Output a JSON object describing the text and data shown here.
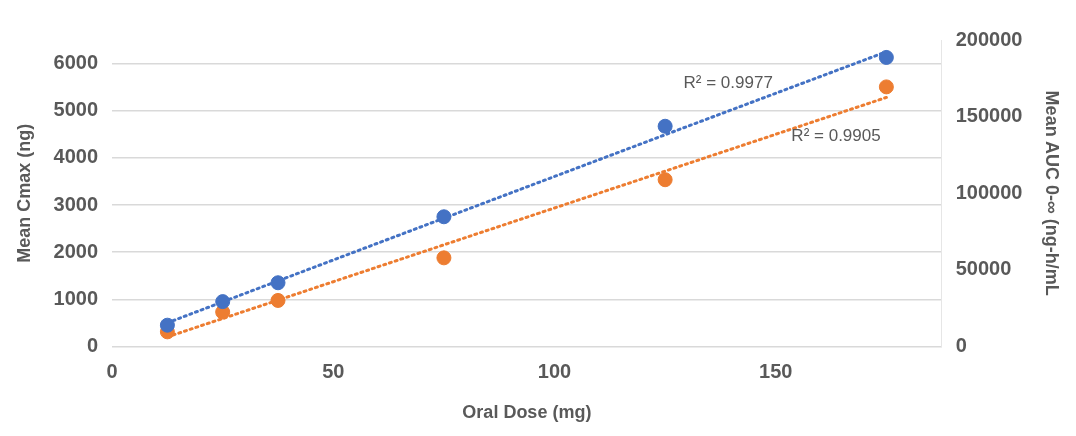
{
  "chart_data": {
    "type": "scatter",
    "xlabel": "Oral Dose (mg)",
    "ylabel": "Mean Cmax (ng)",
    "y2label": "Mean AUC 0-∞ (ng-h/mL",
    "x": [
      12.5,
      25,
      37.5,
      75,
      125,
      175
    ],
    "xlim": [
      0,
      187.5
    ],
    "xticks": [
      0,
      50,
      100,
      150
    ],
    "ylim": [
      0,
      6500
    ],
    "yticks": [
      0,
      1000,
      2000,
      3000,
      4000,
      5000,
      6000
    ],
    "y2lim": [
      0,
      200000
    ],
    "y2ticks": [
      0,
      50000,
      100000,
      150000,
      200000
    ],
    "grid": "y",
    "legend": false,
    "marker": "circle",
    "series": [
      {
        "color": "#4472c4",
        "values": [
          450,
          950,
          1350,
          2750,
          4670,
          6130
        ]
      },
      {
        "color": "#ed7d31",
        "axis": "y2",
        "values": [
          9500,
          22400,
          30000,
          57800,
          108800,
          169400
        ]
      },
      {
        "type": "line",
        "color": "#4472c4",
        "values": [
          500,
          945,
          1390,
          2720,
          4490,
          6250
        ],
        "marker": "none",
        "line_style": "dotted"
      },
      {
        "type": "line",
        "color": "#ed7d31",
        "axis": "y2",
        "values": [
          6200,
          18200,
          30200,
          66300,
          114400,
          162500
        ],
        "marker": "none",
        "line_style": "dotted"
      }
    ],
    "annotations": [
      "R² = 0.9977",
      "R² = 0.9905"
    ]
  }
}
